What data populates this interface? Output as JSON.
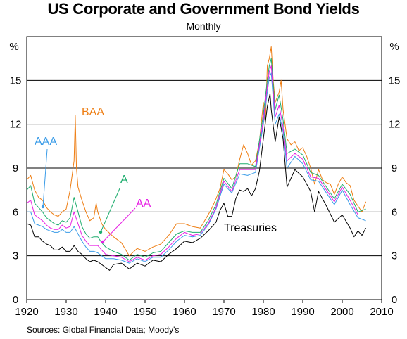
{
  "title": "US Corporate and Government Bond Yields",
  "subtitle": "Monthly",
  "source": "Sources: Global Financial Data; Moody's",
  "chart_data": {
    "type": "line",
    "title": "US Corporate and Government Bond Yields",
    "subtitle": "Monthly",
    "xlabel": "",
    "ylabel": "%",
    "ylabel_right": "%",
    "xlim": [
      1920,
      2010
    ],
    "ylim": [
      0,
      18
    ],
    "x_ticks": [
      1920,
      1930,
      1940,
      1950,
      1960,
      1970,
      1980,
      1990,
      2000,
      2010
    ],
    "y_ticks": [
      0,
      3,
      6,
      9,
      12,
      15
    ],
    "grid": "horizontal",
    "legend": "inline labels",
    "series": [
      {
        "name": "BAA",
        "color": "#ee7d12",
        "x": [
          1920,
          1921,
          1922,
          1923,
          1924,
          1925,
          1926,
          1927,
          1928,
          1929,
          1930,
          1931,
          1932,
          1932.3,
          1932.6,
          1933,
          1934,
          1935,
          1936,
          1937,
          1937.6,
          1938,
          1939,
          1940,
          1942,
          1944,
          1946,
          1948,
          1950,
          1952,
          1954,
          1956,
          1958,
          1960,
          1962,
          1964,
          1966,
          1967,
          1968,
          1969,
          1970,
          1971,
          1972,
          1973,
          1974,
          1975,
          1976,
          1977,
          1978,
          1979,
          1980,
          1980.5,
          1981,
          1981.5,
          1982,
          1982.5,
          1983,
          1984,
          1984.5,
          1985,
          1986,
          1987,
          1988,
          1989,
          1990,
          1991,
          1992,
          1993,
          1994,
          1995,
          1996,
          1997,
          1998,
          1999,
          2000,
          2001,
          2002,
          2003,
          2004,
          2005,
          2006
        ],
        "y": [
          8.2,
          8.5,
          7.5,
          7.0,
          6.8,
          6.3,
          6.0,
          5.8,
          5.7,
          6.0,
          6.2,
          7.5,
          9.5,
          12.6,
          9.0,
          7.7,
          6.8,
          6.0,
          5.4,
          5.6,
          6.6,
          6.0,
          5.2,
          4.8,
          4.3,
          3.9,
          3.0,
          3.5,
          3.3,
          3.6,
          3.8,
          4.4,
          5.2,
          5.2,
          5.0,
          4.9,
          5.8,
          6.3,
          6.9,
          7.6,
          8.9,
          8.6,
          8.2,
          8.4,
          9.6,
          10.6,
          10.0,
          9.2,
          9.5,
          10.8,
          13.5,
          12.0,
          16.0,
          16.5,
          17.3,
          15.0,
          13.5,
          14.2,
          15.0,
          13.0,
          11.0,
          10.6,
          10.8,
          10.2,
          10.4,
          9.8,
          9.0,
          7.9,
          8.9,
          8.2,
          8.0,
          7.9,
          7.2,
          7.9,
          8.4,
          8.0,
          7.8,
          6.8,
          6.4,
          6.0,
          6.7
        ]
      },
      {
        "name": "A",
        "color": "#1ead6e",
        "x": [
          1920,
          1921,
          1922,
          1923,
          1924,
          1925,
          1926,
          1927,
          1928,
          1929,
          1930,
          1931,
          1932,
          1933,
          1934,
          1935,
          1936,
          1937,
          1938,
          1939,
          1940,
          1942,
          1944,
          1946,
          1948,
          1950,
          1952,
          1954,
          1956,
          1958,
          1960,
          1962,
          1964,
          1966,
          1968,
          1970,
          1972,
          1974,
          1976,
          1978,
          1980,
          1981,
          1981.5,
          1982,
          1983,
          1984,
          1985,
          1986,
          1988,
          1990,
          1992,
          1994,
          1996,
          1998,
          2000,
          2002,
          2004,
          2006
        ],
        "y": [
          7.5,
          7.8,
          6.6,
          6.3,
          6.0,
          5.6,
          5.4,
          5.2,
          5.1,
          5.4,
          5.3,
          5.6,
          7.0,
          6.0,
          5.0,
          4.5,
          4.2,
          4.3,
          4.3,
          3.9,
          3.6,
          3.3,
          3.1,
          2.7,
          3.1,
          2.9,
          3.2,
          3.3,
          3.9,
          4.5,
          4.7,
          4.6,
          4.6,
          5.4,
          6.5,
          8.3,
          7.6,
          9.3,
          9.3,
          9.1,
          12.7,
          15.0,
          16.0,
          16.5,
          13.0,
          14.0,
          12.3,
          10.0,
          10.3,
          9.9,
          8.7,
          8.5,
          7.7,
          6.9,
          7.9,
          7.2,
          6.0,
          6.2
        ]
      },
      {
        "name": "AAA",
        "color": "#3a9ce8",
        "x": [
          1920,
          1921,
          1922,
          1923,
          1924,
          1925,
          1926,
          1927,
          1928,
          1929,
          1930,
          1931,
          1932,
          1933,
          1934,
          1935,
          1936,
          1937,
          1938,
          1939,
          1940,
          1942,
          1944,
          1946,
          1948,
          1950,
          1952,
          1954,
          1956,
          1958,
          1960,
          1962,
          1964,
          1966,
          1968,
          1970,
          1972,
          1974,
          1976,
          1978,
          1980,
          1981,
          1981.5,
          1982,
          1983,
          1984,
          1985,
          1986,
          1988,
          1990,
          1992,
          1994,
          1996,
          1998,
          2000,
          2002,
          2004,
          2006
        ],
        "y": [
          6.0,
          6.0,
          5.2,
          5.1,
          5.0,
          4.8,
          4.7,
          4.6,
          4.6,
          4.8,
          4.6,
          4.6,
          5.0,
          4.5,
          4.0,
          3.6,
          3.3,
          3.3,
          3.2,
          3.0,
          2.8,
          2.8,
          2.7,
          2.5,
          2.8,
          2.6,
          2.9,
          2.9,
          3.4,
          4.0,
          4.4,
          4.3,
          4.4,
          5.1,
          6.2,
          7.9,
          7.3,
          8.6,
          8.5,
          8.7,
          12.0,
          14.2,
          15.2,
          15.5,
          12.0,
          12.7,
          11.5,
          9.0,
          9.8,
          9.3,
          8.2,
          8.1,
          7.3,
          6.5,
          7.5,
          6.5,
          5.6,
          5.4
        ]
      },
      {
        "name": "AA",
        "color": "#e61fe3",
        "x": [
          1920,
          1921,
          1922,
          1923,
          1924,
          1925,
          1926,
          1927,
          1928,
          1929,
          1930,
          1931,
          1932,
          1933,
          1934,
          1935,
          1936,
          1937,
          1938,
          1939,
          1940,
          1942,
          1944,
          1946,
          1948,
          1950,
          1952,
          1954,
          1956,
          1958,
          1960,
          1962,
          1964,
          1966,
          1968,
          1970,
          1972,
          1974,
          1976,
          1978,
          1980,
          1981,
          1981.5,
          1982,
          1983,
          1984,
          1985,
          1986,
          1988,
          1990,
          1992,
          1994,
          1996,
          1998,
          2000,
          2002,
          2004,
          2006
        ],
        "y": [
          6.6,
          6.8,
          5.8,
          5.6,
          5.4,
          5.1,
          4.9,
          4.8,
          4.8,
          5.1,
          4.9,
          5.0,
          6.0,
          5.2,
          4.4,
          4.0,
          3.7,
          3.7,
          3.7,
          3.4,
          3.1,
          3.0,
          2.9,
          2.6,
          2.9,
          2.7,
          3.0,
          3.1,
          3.6,
          4.2,
          4.6,
          4.4,
          4.5,
          5.2,
          6.3,
          8.1,
          7.4,
          8.9,
          8.9,
          8.9,
          12.3,
          14.6,
          15.6,
          16.0,
          12.5,
          13.3,
          11.8,
          9.5,
          10.0,
          9.6,
          8.4,
          8.3,
          7.5,
          6.7,
          7.7,
          6.8,
          5.8,
          5.8
        ]
      },
      {
        "name": "Treasuries",
        "color": "#000000",
        "x": [
          1920,
          1921,
          1922,
          1923,
          1924,
          1925,
          1926,
          1927,
          1928,
          1929,
          1930,
          1931,
          1932,
          1933,
          1934,
          1935,
          1936,
          1937,
          1938,
          1939,
          1940,
          1941,
          1942,
          1944,
          1946,
          1948,
          1950,
          1952,
          1954,
          1956,
          1958,
          1960,
          1962,
          1964,
          1966,
          1968,
          1969,
          1970,
          1971,
          1972,
          1973,
          1974,
          1975,
          1976,
          1977,
          1978,
          1979,
          1980,
          1981,
          1981.7,
          1982,
          1983,
          1984,
          1985,
          1986,
          1987,
          1988,
          1990,
          1992,
          1993,
          1994,
          1996,
          1998,
          2000,
          2002,
          2003,
          2004,
          2005,
          2006
        ],
        "y": [
          5.2,
          5.1,
          4.3,
          4.3,
          4.0,
          3.8,
          3.7,
          3.4,
          3.4,
          3.6,
          3.3,
          3.3,
          3.7,
          3.3,
          3.1,
          2.8,
          2.6,
          2.7,
          2.6,
          2.4,
          2.2,
          2.0,
          2.4,
          2.5,
          2.1,
          2.5,
          2.3,
          2.7,
          2.6,
          3.1,
          3.5,
          4.0,
          3.9,
          4.2,
          4.7,
          5.3,
          6.1,
          6.6,
          5.7,
          5.7,
          6.9,
          7.5,
          7.4,
          7.6,
          7.1,
          7.6,
          8.8,
          11.0,
          13.2,
          14.1,
          13.0,
          10.8,
          12.5,
          11.0,
          7.7,
          8.3,
          8.9,
          8.4,
          7.4,
          6.0,
          7.4,
          6.4,
          5.3,
          5.8,
          4.9,
          4.3,
          4.7,
          4.4,
          4.9
        ]
      }
    ],
    "annotations": [
      {
        "label": "BAA",
        "color": "#ee7d12"
      },
      {
        "label": "AAA",
        "color": "#3a9ce8"
      },
      {
        "label": "A",
        "color": "#1ead6e"
      },
      {
        "label": "AA",
        "color": "#e61fe3"
      },
      {
        "label": "Treasuries",
        "color": "#000000"
      }
    ]
  }
}
